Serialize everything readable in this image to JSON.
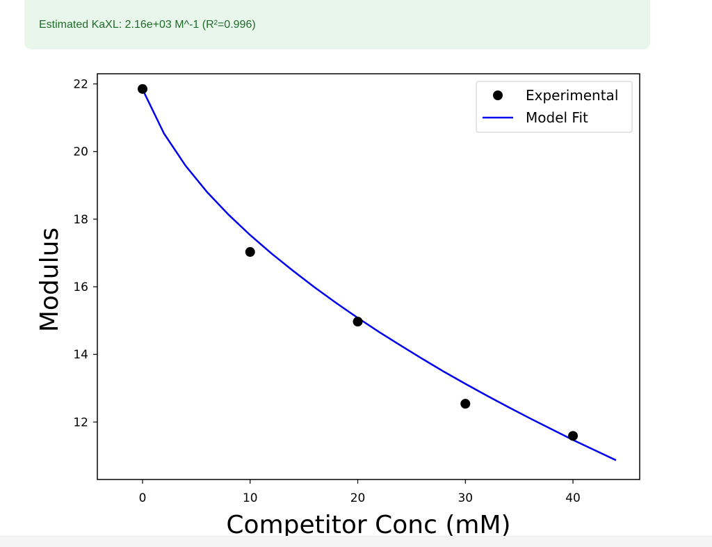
{
  "result": {
    "text": "Estimated KaXL: 2.16e+03 M^-1 (R²=0.996)"
  },
  "colors": {
    "result_background": "#e9f6ec",
    "result_text": "#1f6b2a",
    "points": "#000000",
    "fit_line": "#0000ee"
  },
  "chart_data": {
    "type": "scatter",
    "title": "",
    "xlabel": "Competitor Conc (mM)",
    "ylabel": "Modulus",
    "xlim": [
      -4.2,
      46.2
    ],
    "ylim": [
      10.3,
      22.3
    ],
    "xticks": [
      0,
      10,
      20,
      30,
      40
    ],
    "yticks": [
      12,
      14,
      16,
      18,
      20,
      22
    ],
    "grid": false,
    "legend_position": "top-right",
    "series": [
      {
        "name": "Experimental",
        "type": "scatter",
        "x": [
          0,
          10,
          20,
          30,
          40
        ],
        "y": [
          21.85,
          17.03,
          14.97,
          12.54,
          11.59
        ]
      },
      {
        "name": "Model Fit",
        "type": "line",
        "x": [
          0,
          2,
          4,
          6,
          8,
          10,
          12,
          14,
          16,
          18,
          20,
          22,
          24,
          26,
          28,
          30,
          32,
          34,
          36,
          38,
          40,
          42,
          44
        ],
        "y": [
          21.84,
          20.53,
          19.58,
          18.8,
          18.13,
          17.53,
          16.98,
          16.47,
          15.98,
          15.52,
          15.08,
          14.66,
          14.26,
          13.87,
          13.49,
          13.13,
          12.78,
          12.44,
          12.11,
          11.79,
          11.47,
          11.17,
          10.87
        ]
      }
    ]
  }
}
